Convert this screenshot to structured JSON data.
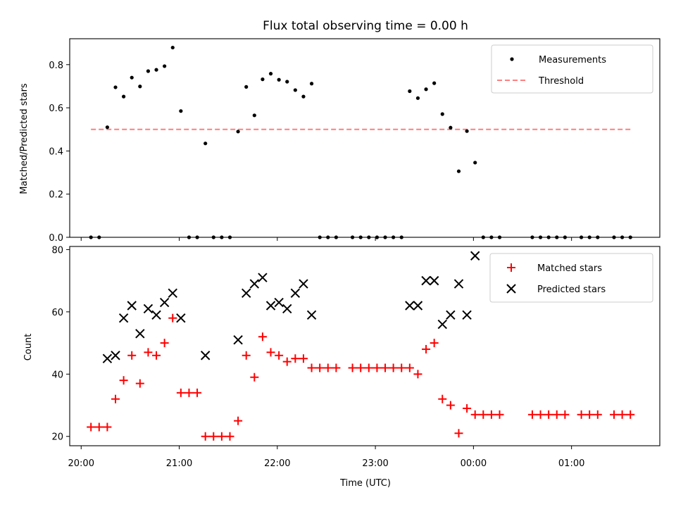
{
  "chart_data": [
    {
      "type": "scatter",
      "title": "Flux total observing time = 0.00 h",
      "ylabel": "Matched/Predicted stars",
      "xlabel": "",
      "xlim": [
        "19:53",
        "01:54"
      ],
      "ylim": [
        0,
        0.92
      ],
      "yticks": [
        "0.0",
        "0.2",
        "0.4",
        "0.6",
        "0.8"
      ],
      "legend": "top-right",
      "series": [
        {
          "name": "Measurements",
          "color": "#000000",
          "marker": "dot",
          "points": [
            [
              "20:06",
              0.0
            ],
            [
              "20:11",
              0.0
            ],
            [
              "20:16",
              0.51
            ],
            [
              "20:21",
              0.695
            ],
            [
              "20:26",
              0.652
            ],
            [
              "20:31",
              0.74
            ],
            [
              "20:36",
              0.699
            ],
            [
              "20:41",
              0.77
            ],
            [
              "20:46",
              0.776
            ],
            [
              "20:51",
              0.793
            ],
            [
              "20:56",
              0.879
            ],
            [
              "21:01",
              0.585
            ],
            [
              "21:06",
              0.0
            ],
            [
              "21:11",
              0.0
            ],
            [
              "21:16",
              0.435
            ],
            [
              "21:21",
              0.0
            ],
            [
              "21:26",
              0.0
            ],
            [
              "21:31",
              0.0
            ],
            [
              "21:36",
              0.49
            ],
            [
              "21:41",
              0.697
            ],
            [
              "21:46",
              0.565
            ],
            [
              "21:51",
              0.732
            ],
            [
              "21:56",
              0.758
            ],
            [
              "22:01",
              0.73
            ],
            [
              "22:06",
              0.721
            ],
            [
              "22:11",
              0.682
            ],
            [
              "22:16",
              0.652
            ],
            [
              "22:21",
              0.712
            ],
            [
              "22:26",
              0.0
            ],
            [
              "22:31",
              0.0
            ],
            [
              "22:36",
              0.0
            ],
            [
              "22:46",
              0.0
            ],
            [
              "22:51",
              0.0
            ],
            [
              "22:56",
              0.0
            ],
            [
              "23:01",
              0.0
            ],
            [
              "23:06",
              0.0
            ],
            [
              "23:11",
              0.0
            ],
            [
              "23:16",
              0.0
            ],
            [
              "23:21",
              0.677
            ],
            [
              "23:26",
              0.645
            ],
            [
              "23:31",
              0.686
            ],
            [
              "23:36",
              0.714
            ],
            [
              "23:41",
              0.571
            ],
            [
              "23:46",
              0.508
            ],
            [
              "23:51",
              0.306
            ],
            [
              "23:56",
              0.492
            ],
            [
              "00:01",
              0.346
            ],
            [
              "00:06",
              0.0
            ],
            [
              "00:11",
              0.0
            ],
            [
              "00:16",
              0.0
            ],
            [
              "00:36",
              0.0
            ],
            [
              "00:41",
              0.0
            ],
            [
              "00:46",
              0.0
            ],
            [
              "00:51",
              0.0
            ],
            [
              "00:56",
              0.0
            ],
            [
              "01:06",
              0.0
            ],
            [
              "01:11",
              0.0
            ],
            [
              "01:16",
              0.0
            ],
            [
              "01:26",
              0.0
            ],
            [
              "01:31",
              0.0
            ],
            [
              "01:36",
              0.0
            ]
          ]
        },
        {
          "name": "Threshold",
          "color": "#ff7f7f",
          "style": "dashed",
          "points": [
            [
              "20:06",
              0.5
            ],
            [
              "01:36",
              0.5
            ]
          ]
        }
      ]
    },
    {
      "type": "scatter",
      "title": "",
      "xlabel": "Time (UTC)",
      "ylabel": "Count",
      "xlim": [
        "19:53",
        "01:54"
      ],
      "ylim": [
        17,
        81
      ],
      "xticks": [
        "20:00",
        "21:00",
        "22:00",
        "23:00",
        "00:00",
        "01:00"
      ],
      "yticks": [
        "20",
        "40",
        "60",
        "80"
      ],
      "legend": "top-right",
      "series": [
        {
          "name": "Matched stars",
          "color": "#ff0000",
          "marker": "plus",
          "points": [
            [
              "20:06",
              23
            ],
            [
              "20:11",
              23
            ],
            [
              "20:16",
              23
            ],
            [
              "20:21",
              32
            ],
            [
              "20:26",
              38
            ],
            [
              "20:31",
              46
            ],
            [
              "20:36",
              37
            ],
            [
              "20:41",
              47
            ],
            [
              "20:46",
              46
            ],
            [
              "20:51",
              50
            ],
            [
              "20:56",
              58
            ],
            [
              "21:01",
              34
            ],
            [
              "21:06",
              34
            ],
            [
              "21:11",
              34
            ],
            [
              "21:16",
              20
            ],
            [
              "21:21",
              20
            ],
            [
              "21:26",
              20
            ],
            [
              "21:31",
              20
            ],
            [
              "21:36",
              25
            ],
            [
              "21:41",
              46
            ],
            [
              "21:46",
              39
            ],
            [
              "21:51",
              52
            ],
            [
              "21:56",
              47
            ],
            [
              "22:01",
              46
            ],
            [
              "22:06",
              44
            ],
            [
              "22:11",
              45
            ],
            [
              "22:16",
              45
            ],
            [
              "22:21",
              42
            ],
            [
              "22:26",
              42
            ],
            [
              "22:31",
              42
            ],
            [
              "22:36",
              42
            ],
            [
              "22:46",
              42
            ],
            [
              "22:51",
              42
            ],
            [
              "22:56",
              42
            ],
            [
              "23:01",
              42
            ],
            [
              "23:06",
              42
            ],
            [
              "23:11",
              42
            ],
            [
              "23:16",
              42
            ],
            [
              "23:21",
              42
            ],
            [
              "23:26",
              40
            ],
            [
              "23:31",
              48
            ],
            [
              "23:36",
              50
            ],
            [
              "23:41",
              32
            ],
            [
              "23:46",
              30
            ],
            [
              "23:51",
              21
            ],
            [
              "23:56",
              29
            ],
            [
              "00:01",
              27
            ],
            [
              "00:06",
              27
            ],
            [
              "00:11",
              27
            ],
            [
              "00:16",
              27
            ],
            [
              "00:36",
              27
            ],
            [
              "00:41",
              27
            ],
            [
              "00:46",
              27
            ],
            [
              "00:51",
              27
            ],
            [
              "00:56",
              27
            ],
            [
              "01:06",
              27
            ],
            [
              "01:11",
              27
            ],
            [
              "01:16",
              27
            ],
            [
              "01:26",
              27
            ],
            [
              "01:31",
              27
            ],
            [
              "01:36",
              27
            ]
          ]
        },
        {
          "name": "Predicted stars",
          "color": "#000000",
          "marker": "x",
          "points": [
            [
              "20:16",
              45
            ],
            [
              "20:21",
              46
            ],
            [
              "20:26",
              58
            ],
            [
              "20:31",
              62
            ],
            [
              "20:36",
              53
            ],
            [
              "20:41",
              61
            ],
            [
              "20:46",
              59
            ],
            [
              "20:51",
              63
            ],
            [
              "20:56",
              66
            ],
            [
              "21:01",
              58
            ],
            [
              "21:16",
              46
            ],
            [
              "21:36",
              51
            ],
            [
              "21:41",
              66
            ],
            [
              "21:46",
              69
            ],
            [
              "21:51",
              71
            ],
            [
              "21:56",
              62
            ],
            [
              "22:01",
              63
            ],
            [
              "22:06",
              61
            ],
            [
              "22:11",
              66
            ],
            [
              "22:16",
              69
            ],
            [
              "22:21",
              59
            ],
            [
              "23:21",
              62
            ],
            [
              "23:26",
              62
            ],
            [
              "23:31",
              70
            ],
            [
              "23:36",
              70
            ],
            [
              "23:41",
              56
            ],
            [
              "23:46",
              59
            ],
            [
              "23:51",
              69
            ],
            [
              "23:56",
              59
            ],
            [
              "00:01",
              78
            ]
          ]
        }
      ]
    }
  ]
}
